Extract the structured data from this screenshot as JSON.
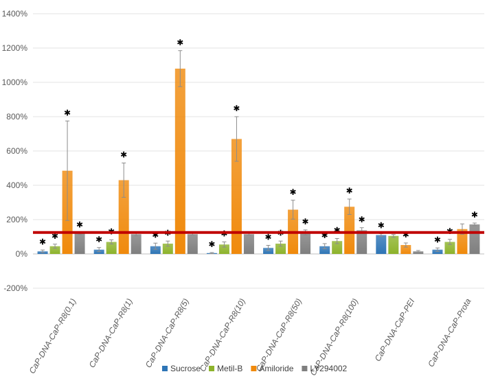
{
  "chart_data": {
    "type": "bar",
    "categories": [
      "CaP-DNA-CaP-R8(0.1)",
      "CaP-DNA-CaP-R8(1)",
      "CaP-DNA-CaP-R8(5)",
      "CaP-DNA-CaP-R8(10)",
      "CaP-DNA-CaP-R8(50)",
      "CaP-DNA-CaP-R8(100)",
      "CaP-DNA-CaP-PEI",
      "CaP-DNA-CaP-Prota"
    ],
    "series": [
      {
        "name": "Sucrose",
        "color": "#2E75B6",
        "values": [
          15,
          25,
          45,
          5,
          35,
          45,
          110,
          25
        ],
        "errors": [
          8,
          12,
          18,
          3,
          15,
          15,
          8,
          10
        ],
        "significant": [
          true,
          true,
          true,
          true,
          true,
          true,
          true,
          true
        ]
      },
      {
        "name": "Metil-B",
        "color": "#8DB32B",
        "values": [
          45,
          70,
          60,
          55,
          60,
          75,
          105,
          70
        ],
        "errors": [
          12,
          12,
          15,
          15,
          15,
          15,
          8,
          15
        ],
        "significant": [
          true,
          true,
          true,
          true,
          true,
          true,
          false,
          true
        ]
      },
      {
        "name": "Amiloride",
        "color": "#F08A0C",
        "values": [
          485,
          430,
          1080,
          670,
          258,
          275,
          52,
          145
        ],
        "errors": [
          290,
          100,
          105,
          130,
          55,
          45,
          12,
          30
        ],
        "significant": [
          true,
          true,
          true,
          true,
          true,
          true,
          true,
          false
        ]
      },
      {
        "name": "LY294002",
        "color": "#7F7F7F",
        "values": [
          118,
          115,
          115,
          115,
          125,
          138,
          15,
          172
        ],
        "errors": [
          5,
          10,
          5,
          5,
          15,
          15,
          5,
          8
        ],
        "significant": [
          true,
          false,
          false,
          false,
          true,
          true,
          false,
          true
        ]
      }
    ],
    "yticks": [
      "-200%",
      "0%",
      "200%",
      "400%",
      "600%",
      "800%",
      "1000%",
      "1200%",
      "1400%"
    ],
    "ylim": [
      -200,
      1400
    ],
    "reference_line": {
      "value": 125,
      "color": "#C00000"
    },
    "significance_marker": "✱",
    "legend_position": "bottom",
    "grid": true
  }
}
